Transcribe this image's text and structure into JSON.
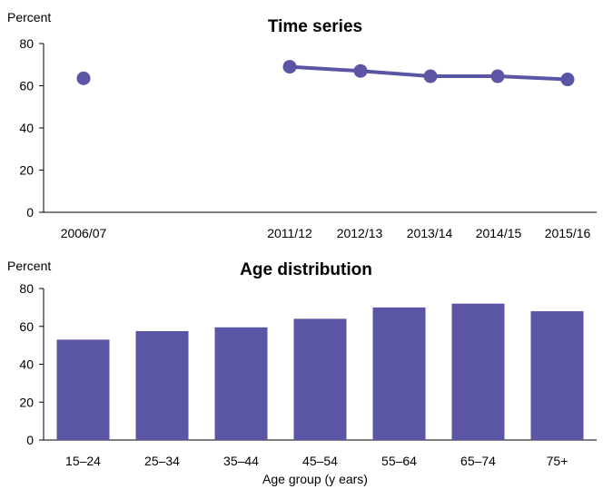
{
  "colors": {
    "series": "#5b55a6",
    "axis": "#000000",
    "background": "#ffffff"
  },
  "chart_data": [
    {
      "type": "line",
      "title": "Time series",
      "ylabel": "Percent",
      "xlabel": "",
      "ylim": [
        0,
        80
      ],
      "yticks": [
        0,
        20,
        40,
        60,
        80
      ],
      "grid": false,
      "x": [
        "2006/07",
        "2011/12",
        "2012/13",
        "2013/14",
        "2014/15",
        "2015/16"
      ],
      "series": [
        {
          "values": [
            63.5,
            69,
            67,
            64.5,
            64.5,
            63
          ]
        }
      ]
    },
    {
      "type": "bar",
      "title": "Age distribution",
      "ylabel": "Percent",
      "xlabel": "Age group (y ears)",
      "ylim": [
        0,
        80
      ],
      "yticks": [
        0,
        20,
        40,
        60,
        80
      ],
      "grid": false,
      "categories": [
        "15–24",
        "25–34",
        "35–44",
        "45–54",
        "55–64",
        "65–74",
        "75+"
      ],
      "values": [
        53,
        57.5,
        59.5,
        64,
        70,
        72,
        68
      ]
    }
  ]
}
